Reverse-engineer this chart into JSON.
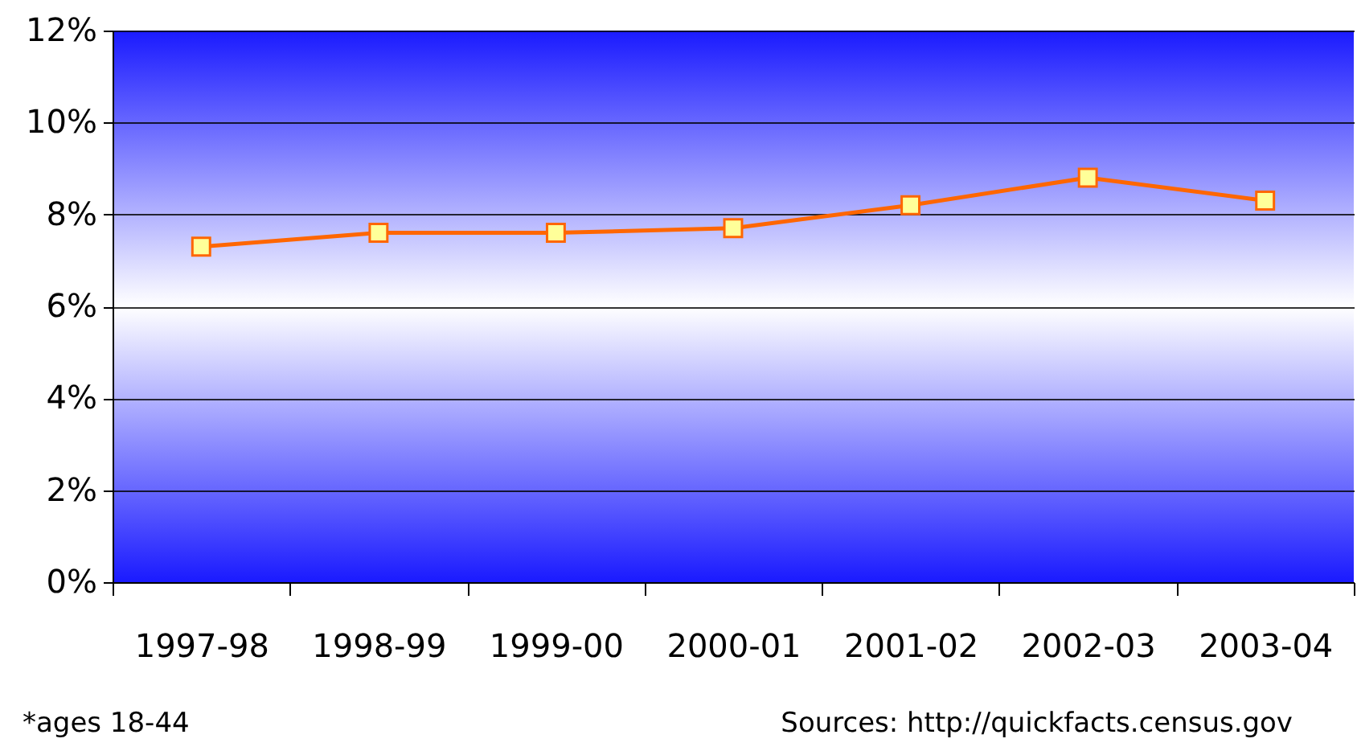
{
  "chart_data": {
    "type": "line",
    "categories": [
      "1997-98",
      "1998-99",
      "1999-00",
      "2000-01",
      "2001-02",
      "2002-03",
      "2003-04"
    ],
    "series": [
      {
        "color": "#ff6600",
        "values": [
          7.3,
          7.6,
          7.6,
          7.7,
          8.2,
          8.8,
          8.3
        ]
      }
    ],
    "ylim": [
      0,
      12
    ],
    "yticks": [
      {
        "value": 0,
        "label": "0%"
      },
      {
        "value": 2,
        "label": "2%"
      },
      {
        "value": 4,
        "label": "4%"
      },
      {
        "value": 6,
        "label": "6%"
      },
      {
        "value": 8,
        "label": "8%"
      },
      {
        "value": 10,
        "label": "10%"
      },
      {
        "value": 12,
        "label": "12%"
      }
    ],
    "grid": "y",
    "marker": "square",
    "line_style": "solid",
    "annotations": [
      "*ages 18-44",
      "Sources: http://quickfacts.census.gov"
    ]
  }
}
